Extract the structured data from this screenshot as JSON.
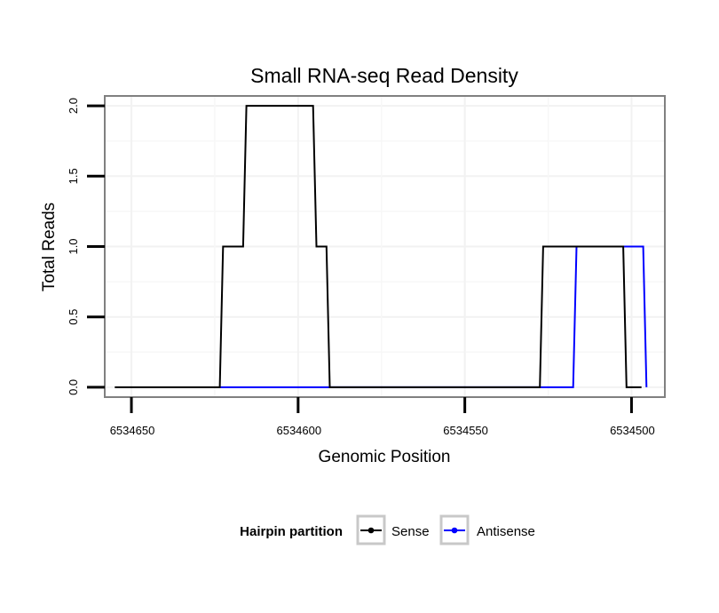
{
  "chart_data": {
    "type": "line",
    "title": "Small RNA-seq Read Density",
    "xlabel": "Genomic Position",
    "ylabel": "Total Reads",
    "x_reversed": true,
    "xlim": [
      6534658,
      6534490
    ],
    "ylim": [
      -0.07,
      2.07
    ],
    "x_ticks": [
      6534650,
      6534600,
      6534550,
      6534500
    ],
    "x_tick_labels": [
      "6534650",
      "6534600",
      "6534550",
      "6534500"
    ],
    "y_ticks": [
      0.0,
      0.5,
      1.0,
      1.5,
      2.0
    ],
    "y_tick_labels": [
      "0.0",
      "0.5",
      "1.0",
      "1.5",
      "2.0"
    ],
    "grid": true,
    "legend": {
      "title": "Hairpin partition",
      "position": "bottom",
      "entries": [
        "Sense",
        "Antisense"
      ]
    },
    "series": [
      {
        "name": "Sense",
        "color": "#000000",
        "x": [
          6534655,
          6534623.5,
          6534622.5,
          6534616.5,
          6534615.5,
          6534595.5,
          6534594.5,
          6534591.5,
          6534590.5,
          6534527.5,
          6534526.5,
          6534502.5,
          6534501.5,
          6534497
        ],
        "y": [
          0,
          0,
          1,
          1,
          2,
          2,
          1,
          1,
          0,
          0,
          1,
          1,
          0,
          0
        ]
      },
      {
        "name": "Antisense",
        "color": "#0000ff",
        "x": [
          6534623.5,
          6534590.5,
          6534517.5,
          6534516.5,
          6534496.5,
          6534495.5
        ],
        "y": [
          0,
          0,
          0,
          1,
          1,
          0
        ]
      }
    ]
  }
}
